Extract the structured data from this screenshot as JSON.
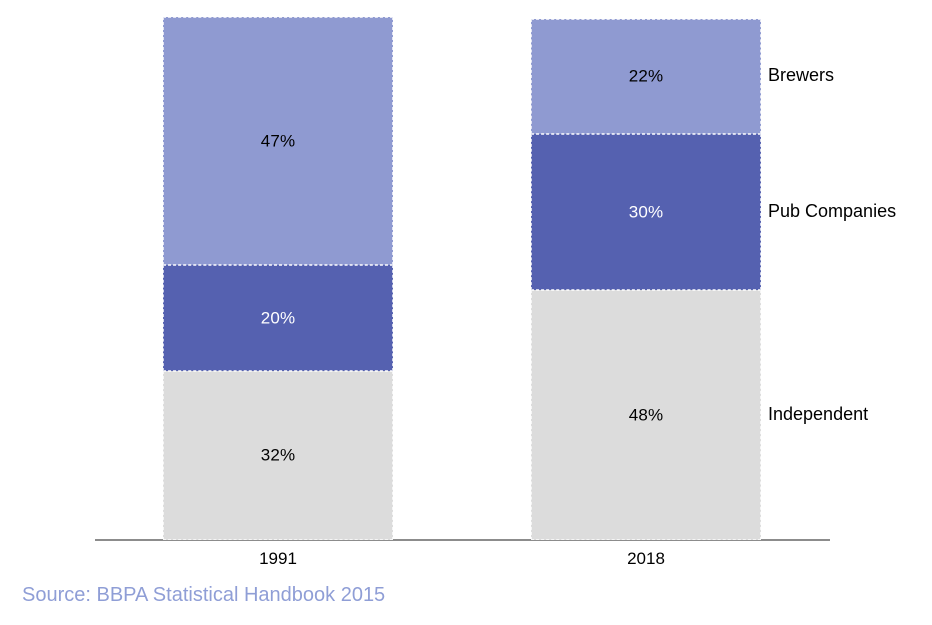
{
  "chart_data": {
    "type": "bar",
    "variant": "stacked",
    "title": "",
    "xlabel": "",
    "ylabel": "",
    "ylim": [
      0,
      100
    ],
    "grid": false,
    "legend_position": "right",
    "value_suffix": "%",
    "categories": [
      "1991",
      "2018"
    ],
    "series": [
      {
        "name": "Independent",
        "values": [
          32,
          48
        ],
        "color": "#dcdcdc",
        "label_color": "#000000"
      },
      {
        "name": "Pub Companies",
        "values": [
          20,
          30
        ],
        "color": "#5561b0",
        "label_color": "#ffffff"
      },
      {
        "name": "Brewers",
        "values": [
          47,
          22
        ],
        "color": "#8f9ad1",
        "label_color": "#000000"
      }
    ],
    "axis_line_color": "#8c8c8c",
    "tick_label_color": "#000000"
  },
  "source": {
    "text": "Source: BBPA Statistical Handbook 2015",
    "color": "#8f9ed6"
  }
}
